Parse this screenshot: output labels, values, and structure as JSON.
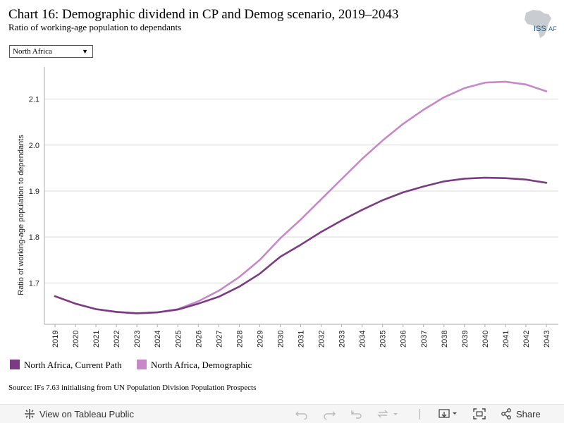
{
  "header": {
    "title": "Chart 16: Demographic dividend in CP and Demog scenario, 2019–2043",
    "subtitle": "Ratio of working-age population to dependants",
    "logo_text": {
      "part1": "ISS",
      "part2": "AF"
    }
  },
  "filter": {
    "selected": "North Africa",
    "icon": "chevron-down-icon"
  },
  "chart_data": {
    "type": "line",
    "ylabel": "Ratio of working-age population to dependants",
    "xlabel": "",
    "x": [
      2019,
      2020,
      2021,
      2022,
      2023,
      2024,
      2025,
      2026,
      2027,
      2028,
      2029,
      2030,
      2031,
      2032,
      2033,
      2034,
      2035,
      2036,
      2037,
      2038,
      2039,
      2040,
      2041,
      2042,
      2043
    ],
    "ylim": [
      1.61,
      2.17
    ],
    "yticks": [
      1.7,
      1.8,
      1.9,
      2.0,
      2.1
    ],
    "grid": true,
    "series": [
      {
        "name": "North Africa, Current Path",
        "color": "#7b3a84",
        "values": [
          1.671,
          1.655,
          1.643,
          1.637,
          1.634,
          1.636,
          1.642,
          1.655,
          1.67,
          1.692,
          1.72,
          1.757,
          1.783,
          1.811,
          1.836,
          1.859,
          1.88,
          1.897,
          1.91,
          1.921,
          1.927,
          1.929,
          1.928,
          1.925,
          1.918
        ]
      },
      {
        "name": "North Africa, Demographic",
        "color": "#c788c8",
        "values": [
          1.671,
          1.655,
          1.643,
          1.637,
          1.634,
          1.636,
          1.643,
          1.66,
          1.683,
          1.713,
          1.75,
          1.797,
          1.838,
          1.882,
          1.926,
          1.97,
          2.01,
          2.046,
          2.077,
          2.104,
          2.124,
          2.136,
          2.138,
          2.132,
          2.117
        ]
      }
    ]
  },
  "source": "Source: IFs 7.63 initialising from UN Population Division Population Prospects",
  "toolbar": {
    "view_label": "View on Tableau Public",
    "share_label": "Share"
  }
}
